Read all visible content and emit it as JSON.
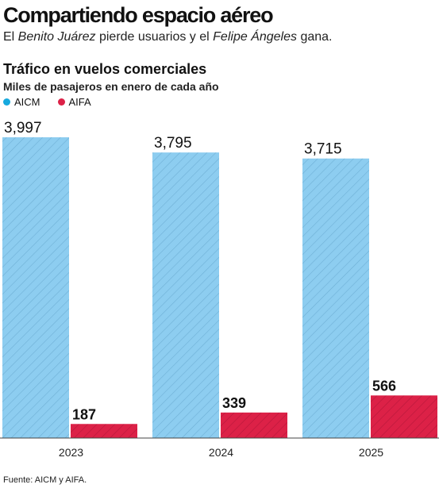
{
  "header": {
    "title": "Compartiendo espacio aéreo",
    "dek_parts": [
      {
        "text": "El ",
        "italic": false
      },
      {
        "text": "Benito Juárez",
        "italic": true
      },
      {
        "text": " pierde usuarios y el ",
        "italic": false
      },
      {
        "text": "Felipe Ángeles",
        "italic": true
      },
      {
        "text": " gana.",
        "italic": false
      }
    ]
  },
  "colors": {
    "aicm": "#8dcdf0",
    "aicm_hatch": "#6fb0d6",
    "aifa": "#dc2147",
    "aifa_hatch": "#b8173a",
    "legend_aicm": "#16a9de",
    "legend_aifa": "#dc2147"
  },
  "chart_data": {
    "type": "bar",
    "title": "Tráfico en vuelos comerciales",
    "subtitle": "Miles de pasajeros en enero de cada año",
    "categories": [
      "2023",
      "2024",
      "2025"
    ],
    "series": [
      {
        "name": "AICM",
        "values": [
          3997,
          3795,
          3715
        ],
        "labels": [
          "3,997",
          "3,795",
          "3,715"
        ]
      },
      {
        "name": "AIFA",
        "values": [
          187,
          339,
          566
        ],
        "labels": [
          "187",
          "339",
          "566"
        ]
      }
    ],
    "legend_position": "top-left",
    "grid": false,
    "ylim": [
      0,
      4000
    ]
  },
  "source": "Fuente: AICM y AIFA."
}
